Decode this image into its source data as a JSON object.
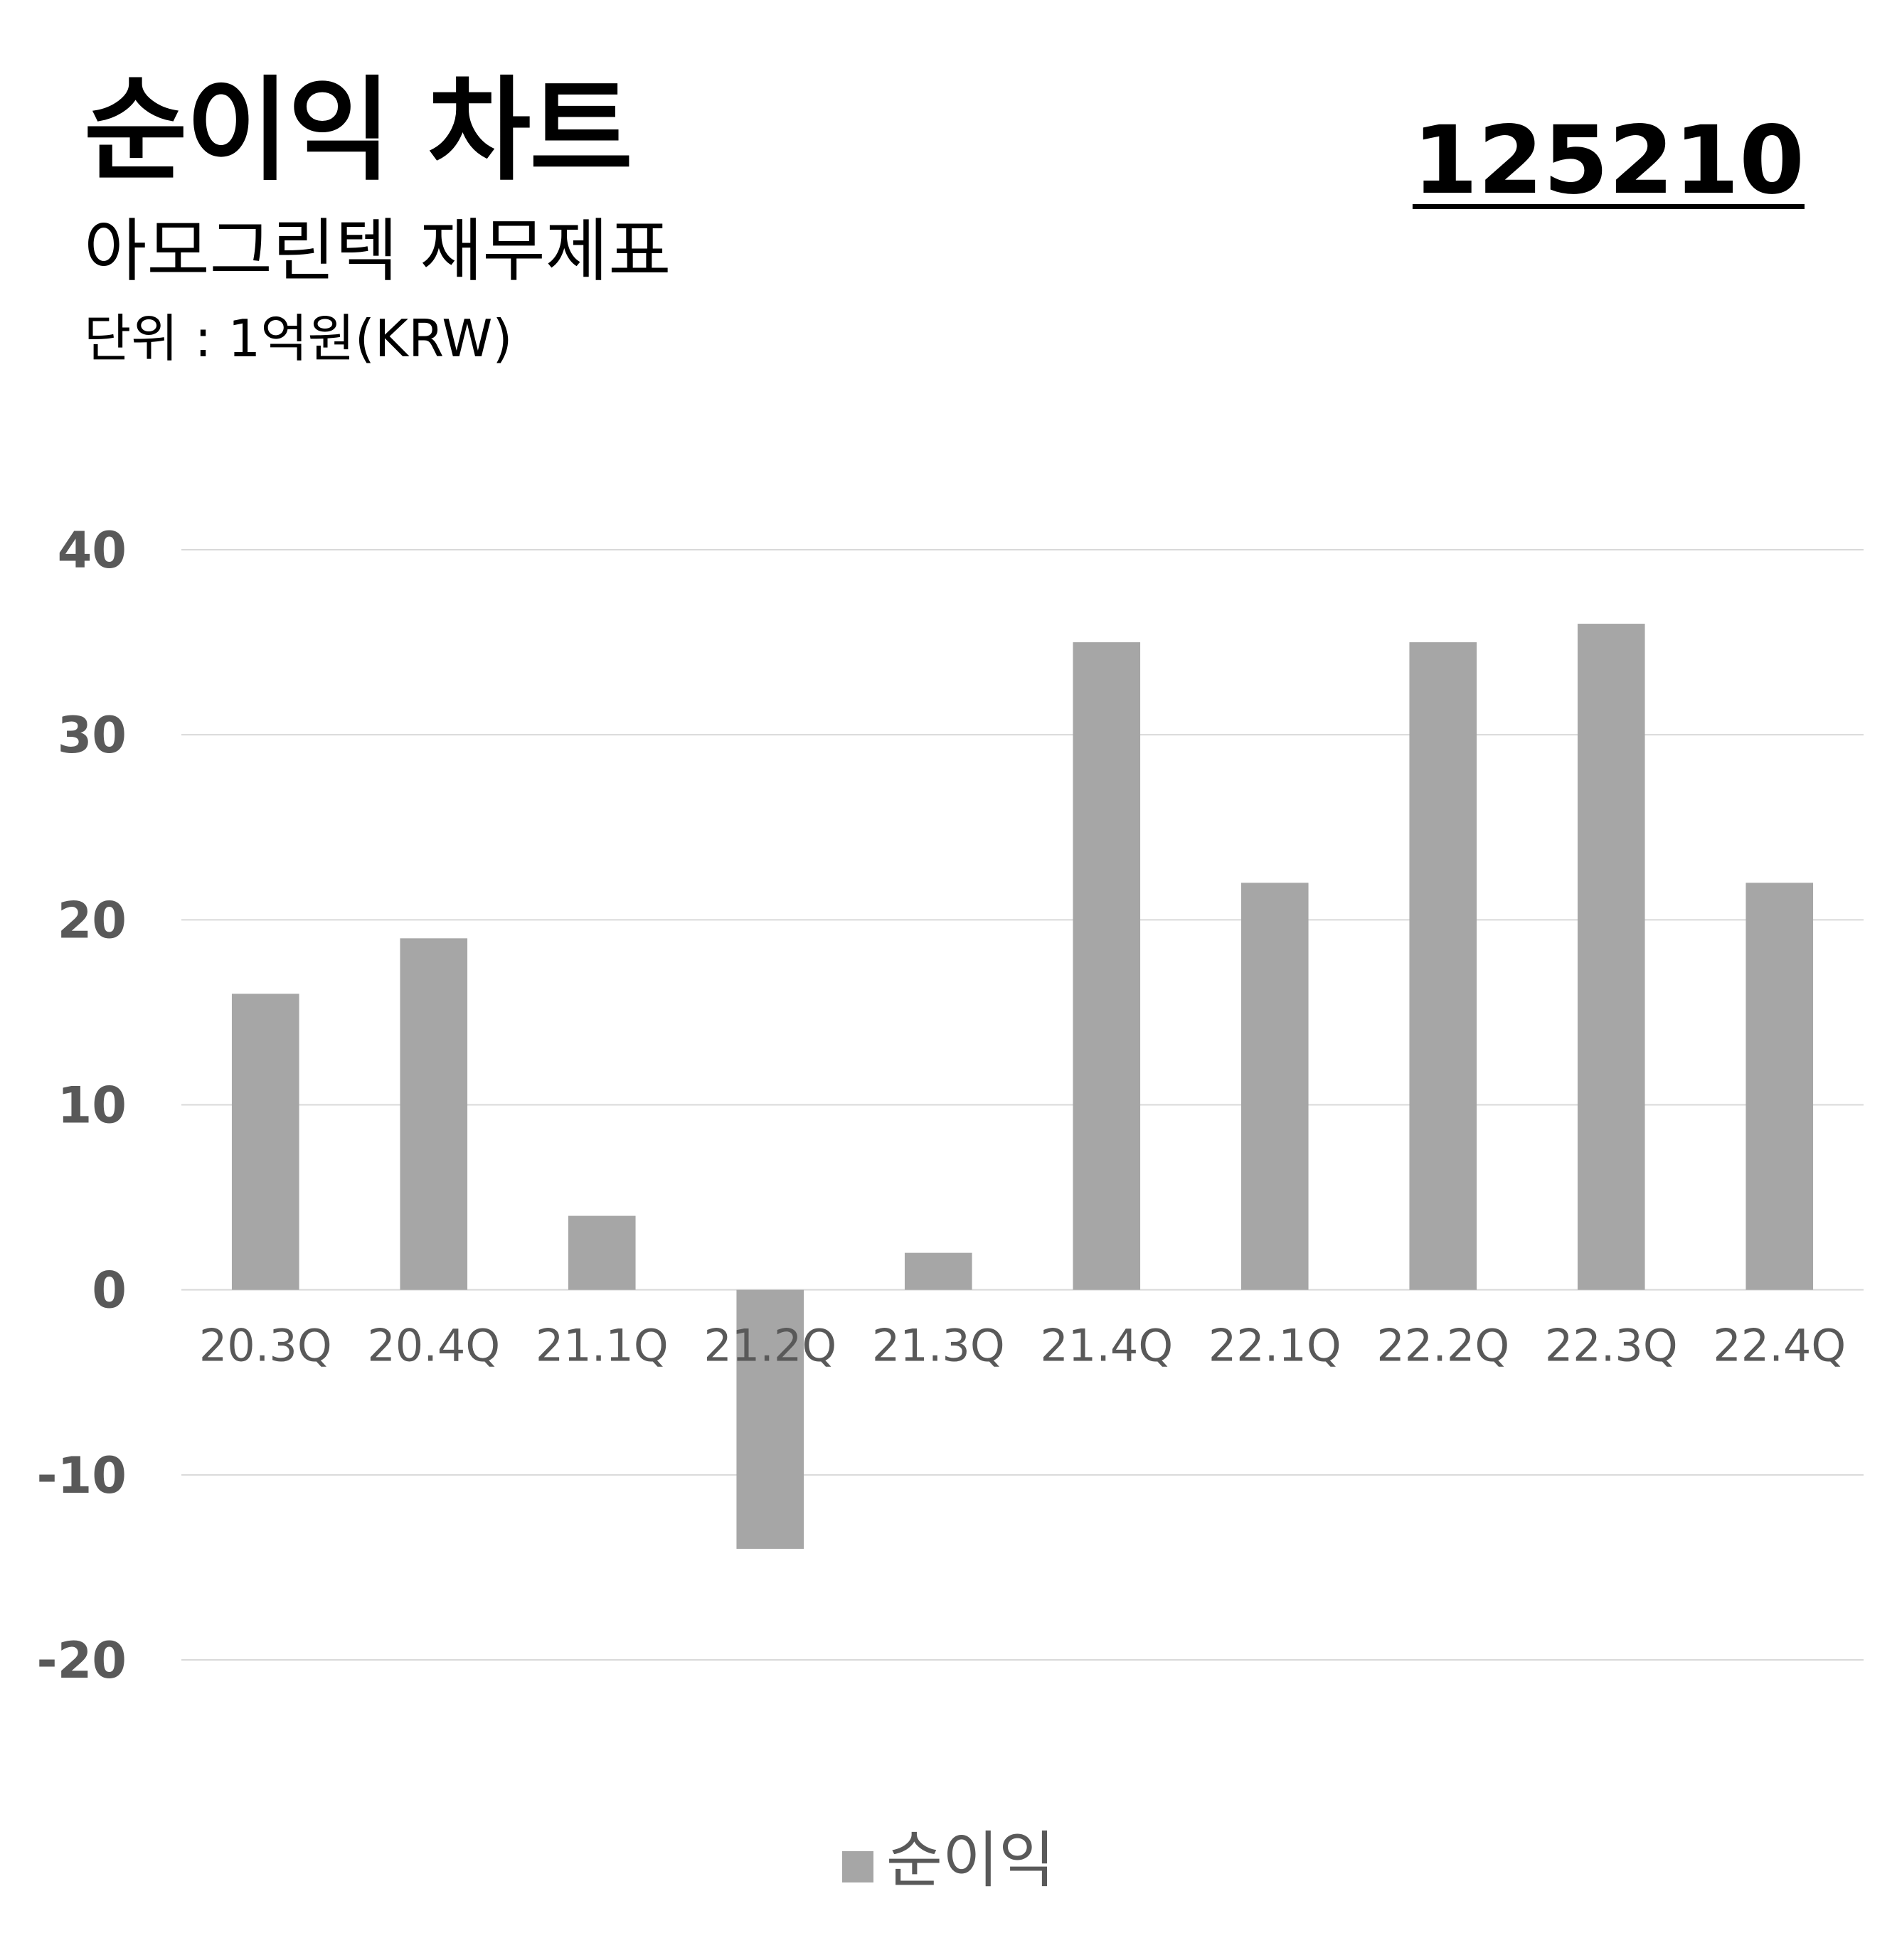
{
  "header": {
    "title": "순이익 차트",
    "subtitle": "아모그린텍 재무제표",
    "unit": "단위 : 1억원(KRW)",
    "code": "125210"
  },
  "colors": {
    "bar": "#a6a6a6",
    "grid": "#d9d9d9",
    "tick_text": "#595959"
  },
  "chart_data": {
    "type": "bar",
    "categories": [
      "20.3Q",
      "20.4Q",
      "21.1Q",
      "21.2Q",
      "21.3Q",
      "21.4Q",
      "22.1Q",
      "22.2Q",
      "22.3Q",
      "22.4Q"
    ],
    "series": [
      {
        "name": "순이익",
        "values": [
          16,
          19,
          4,
          -14,
          2,
          35,
          22,
          35,
          36,
          22
        ]
      }
    ],
    "ylim": [
      -20,
      40
    ],
    "yticks": [
      40,
      30,
      20,
      10,
      0,
      -10,
      -20
    ],
    "grid": true,
    "legend": "bottom-center"
  }
}
